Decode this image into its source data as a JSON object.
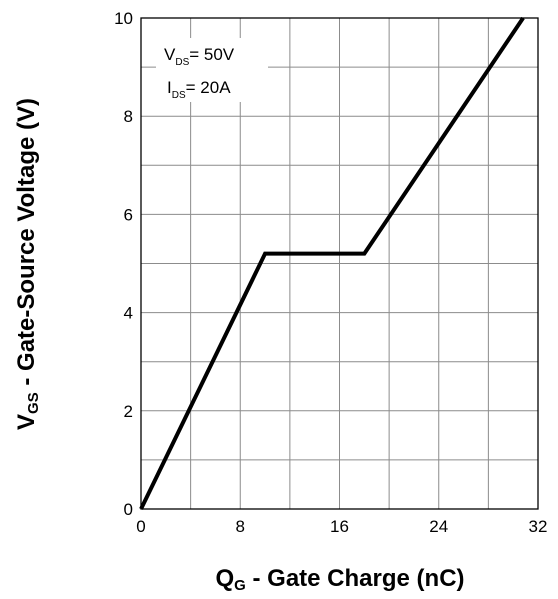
{
  "chart_data": {
    "type": "line",
    "xlabel": {
      "main": "Q",
      "sub": "G",
      "rest": " - Gate Charge (nC)"
    },
    "ylabel": {
      "main": "V",
      "sub": "GS",
      "rest": " - Gate-Source Voltage (V)"
    },
    "xlim": [
      0,
      32
    ],
    "ylim": [
      0,
      10
    ],
    "x_ticks": [
      0,
      8,
      16,
      24,
      32
    ],
    "y_ticks": [
      0,
      2,
      4,
      6,
      8,
      10
    ],
    "grid": true,
    "series": [
      {
        "x": [
          0,
          10,
          18,
          30.8
        ],
        "y": [
          0,
          5.2,
          5.2,
          10
        ]
      }
    ],
    "annotations": [
      {
        "main": "V",
        "sub": "DS",
        "rest": "= 50V"
      },
      {
        "main": "I",
        "sub": "DS",
        "rest": "= 20A"
      }
    ]
  }
}
